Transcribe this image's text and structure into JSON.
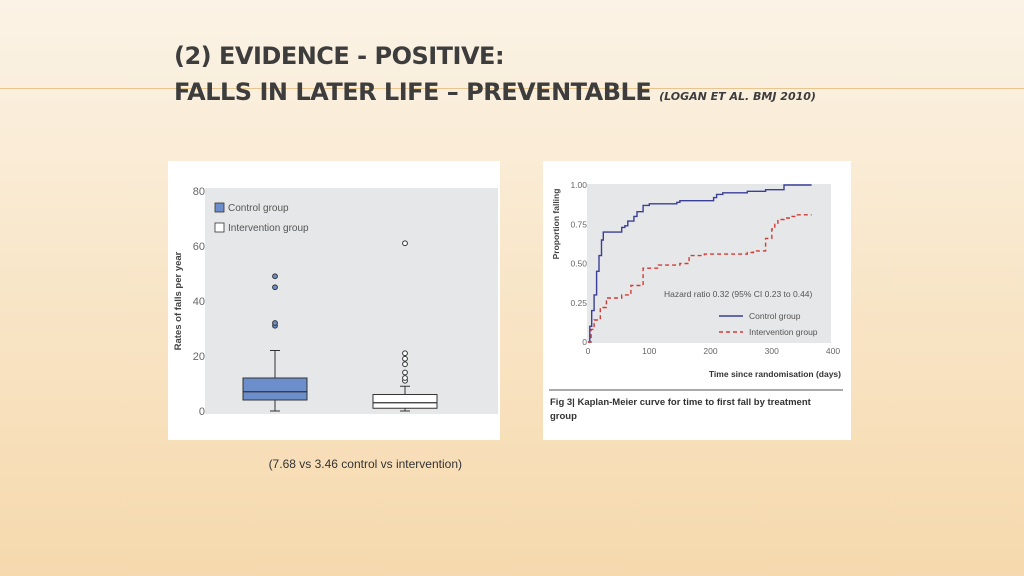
{
  "slide": {
    "title_line1": "(2) EVIDENCE - POSITIVE:",
    "title_line2": "FALLS IN LATER LIFE – PREVENTABLE",
    "citation": "(LOGAN ET AL. BMJ 2010)",
    "caption": "(7.68 vs 3.46 control vs intervention)"
  },
  "colors": {
    "control": "#6c8fcb",
    "intervention": "#ffffff",
    "km_control": "#3a3f95",
    "km_intervention": "#d43a36"
  },
  "chart_data": [
    {
      "type": "box",
      "title": "",
      "ylabel": "Rates of falls per year",
      "ylim": [
        0,
        80
      ],
      "yticks": [
        "0",
        "20",
        "40",
        "60",
        "80"
      ],
      "yticks_values": [
        0,
        20,
        40,
        60,
        80
      ],
      "legend": [
        "Control group",
        "Intervention group"
      ],
      "series": [
        {
          "name": "Control group",
          "min": 0,
          "q1": 4,
          "median": 7,
          "q3": 12,
          "max": 22,
          "outliers": [
            31,
            32,
            45,
            49
          ]
        },
        {
          "name": "Intervention group",
          "min": 0,
          "q1": 1,
          "median": 3,
          "q3": 6,
          "max": 9,
          "outliers": [
            11,
            12,
            14,
            17,
            19,
            21,
            61
          ]
        }
      ]
    },
    {
      "type": "line",
      "title": "Kaplan-Meier curve for time to first fall by treatment group",
      "fig_label": "Fig 3|",
      "caption_rest": " Kaplan-Meier curve for time to first fall by treatment",
      "caption_line2": "group",
      "xlabel": "Time since randomisation (days)",
      "ylabel": "Proportion falling",
      "xlim": [
        0,
        400
      ],
      "ylim": [
        0,
        1
      ],
      "xticks": [
        "0",
        "100",
        "200",
        "300",
        "400"
      ],
      "xticks_values": [
        0,
        100,
        200,
        300,
        400
      ],
      "yticks": [
        "0",
        "0.25",
        "0.50",
        "0.75",
        "1.00"
      ],
      "yticks_values": [
        0,
        0.25,
        0.5,
        0.75,
        1.0
      ],
      "annotation": "Hazard ratio 0.32 (95% CI 0.23 to 0.44)",
      "legend": [
        "Control group",
        "Intervention group"
      ],
      "series": [
        {
          "name": "Control group",
          "style": "solid",
          "x": [
            0,
            3,
            6,
            10,
            14,
            18,
            22,
            25,
            35,
            55,
            60,
            65,
            75,
            80,
            90,
            100,
            120,
            145,
            150,
            185,
            205,
            210,
            220,
            260,
            290,
            320,
            365
          ],
          "y": [
            0,
            0.1,
            0.2,
            0.3,
            0.45,
            0.55,
            0.65,
            0.7,
            0.7,
            0.73,
            0.74,
            0.77,
            0.8,
            0.83,
            0.87,
            0.88,
            0.88,
            0.89,
            0.9,
            0.9,
            0.92,
            0.94,
            0.95,
            0.96,
            0.97,
            1.0,
            1.0
          ]
        },
        {
          "name": "Intervention group",
          "style": "dashed",
          "x": [
            0,
            5,
            10,
            20,
            30,
            55,
            70,
            90,
            115,
            120,
            150,
            165,
            190,
            235,
            260,
            270,
            290,
            300,
            305,
            310,
            320,
            330,
            340,
            350,
            365
          ],
          "y": [
            0,
            0.08,
            0.14,
            0.22,
            0.28,
            0.3,
            0.36,
            0.47,
            0.49,
            0.49,
            0.5,
            0.55,
            0.56,
            0.56,
            0.57,
            0.58,
            0.66,
            0.72,
            0.75,
            0.78,
            0.79,
            0.8,
            0.81,
            0.81,
            0.81
          ]
        }
      ]
    }
  ]
}
